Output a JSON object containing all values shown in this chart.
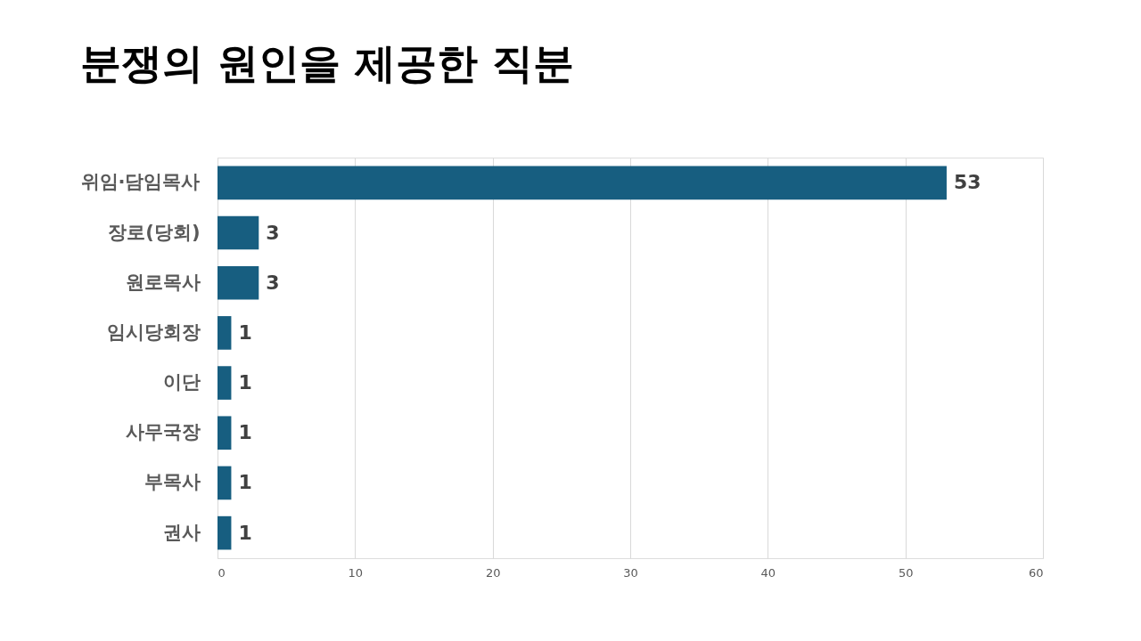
{
  "chart_data": {
    "type": "bar",
    "orientation": "horizontal",
    "title": "분쟁의 원인을 제공한 직분",
    "categories": [
      "위임·담임목사",
      "장로(당회)",
      "원로목사",
      "임시당회장",
      "이단",
      "사무국장",
      "부목사",
      "권사"
    ],
    "values": [
      53,
      3,
      3,
      1,
      1,
      1,
      1,
      1
    ],
    "color": "#175e80",
    "xlim": [
      0,
      60
    ],
    "xticks": [
      0,
      10,
      20,
      30,
      40,
      50,
      60
    ],
    "grid": "x",
    "data_labels": true
  }
}
